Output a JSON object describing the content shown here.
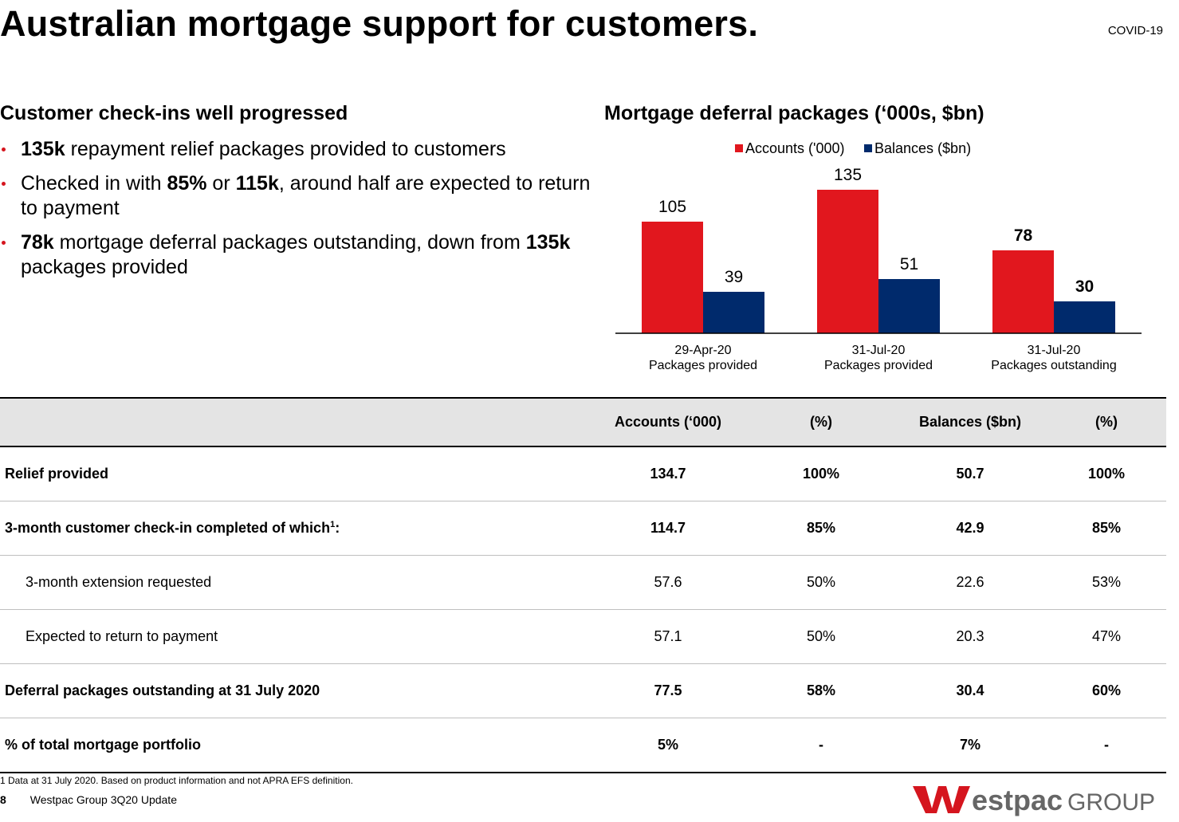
{
  "header": {
    "title": "Australian mortgage support for customers.",
    "tag": "COVID-19"
  },
  "left": {
    "heading": "Customer check-ins well progressed",
    "bullets": [
      {
        "bold1": "135k",
        "text1": " repayment relief packages provided to customers"
      },
      {
        "text0": "Checked in with ",
        "bold1": "85%",
        "text1": " or ",
        "bold2": "115k",
        "text2": ", around half are expected to return to payment"
      },
      {
        "bold1": "78k",
        "text1": " mortgage deferral packages outstanding, down from ",
        "bold2": "135k",
        "text2": " packages provided"
      }
    ]
  },
  "colors": {
    "accounts": "#e1171e",
    "balances": "#002a6c",
    "brand_red": "#d5151e"
  },
  "chart_data": {
    "type": "bar",
    "title": "Mortgage deferral packages (‘000s, $bn)",
    "categories": [
      [
        "29-Apr-20",
        "Packages provided"
      ],
      [
        "31-Jul-20",
        "Packages provided"
      ],
      [
        "31-Jul-20",
        "Packages outstanding"
      ]
    ],
    "series": [
      {
        "name": "Accounts ('000)",
        "values": [
          105,
          135,
          78
        ],
        "label_bold": [
          false,
          false,
          true
        ]
      },
      {
        "name": "Balances ($bn)",
        "values": [
          39,
          51,
          30
        ],
        "label_bold": [
          false,
          false,
          true
        ]
      }
    ],
    "ylim": [
      0,
      135
    ],
    "legend": "top-center"
  },
  "table": {
    "headers": [
      "",
      "Accounts (‘000)",
      "(%)",
      "Balances ($bn)",
      "(%)"
    ],
    "rows": [
      {
        "label": "Relief provided",
        "sup": "",
        "cells": [
          "134.7",
          "100%",
          "50.7",
          "100%"
        ],
        "bold": true,
        "indent": false
      },
      {
        "label": "3-month customer check-in completed of which",
        "sup": "1",
        "suffix": ":",
        "cells": [
          "114.7",
          "85%",
          "42.9",
          "85%"
        ],
        "bold": true,
        "indent": false
      },
      {
        "label": "3-month extension requested",
        "sup": "",
        "cells": [
          "57.6",
          "50%",
          "22.6",
          "53%"
        ],
        "bold": false,
        "indent": true
      },
      {
        "label": "Expected to return to payment",
        "sup": "",
        "cells": [
          "57.1",
          "50%",
          "20.3",
          "47%"
        ],
        "bold": false,
        "indent": true
      },
      {
        "label": "Deferral packages outstanding at 31 July 2020",
        "sup": "",
        "cells": [
          "77.5",
          "58%",
          "30.4",
          "60%"
        ],
        "bold": true,
        "indent": false
      },
      {
        "label": "% of total mortgage portfolio",
        "sup": "",
        "cells": [
          "5%",
          "-",
          "7%",
          "-"
        ],
        "bold": true,
        "indent": false
      }
    ]
  },
  "footer": {
    "footnote": "1 Data at 31 July 2020. Based on product information and not APRA EFS definition.",
    "page_number": "8",
    "doc_title": "Westpac Group 3Q20 Update",
    "logo_word": "estpac",
    "logo_group": "GROUP"
  }
}
